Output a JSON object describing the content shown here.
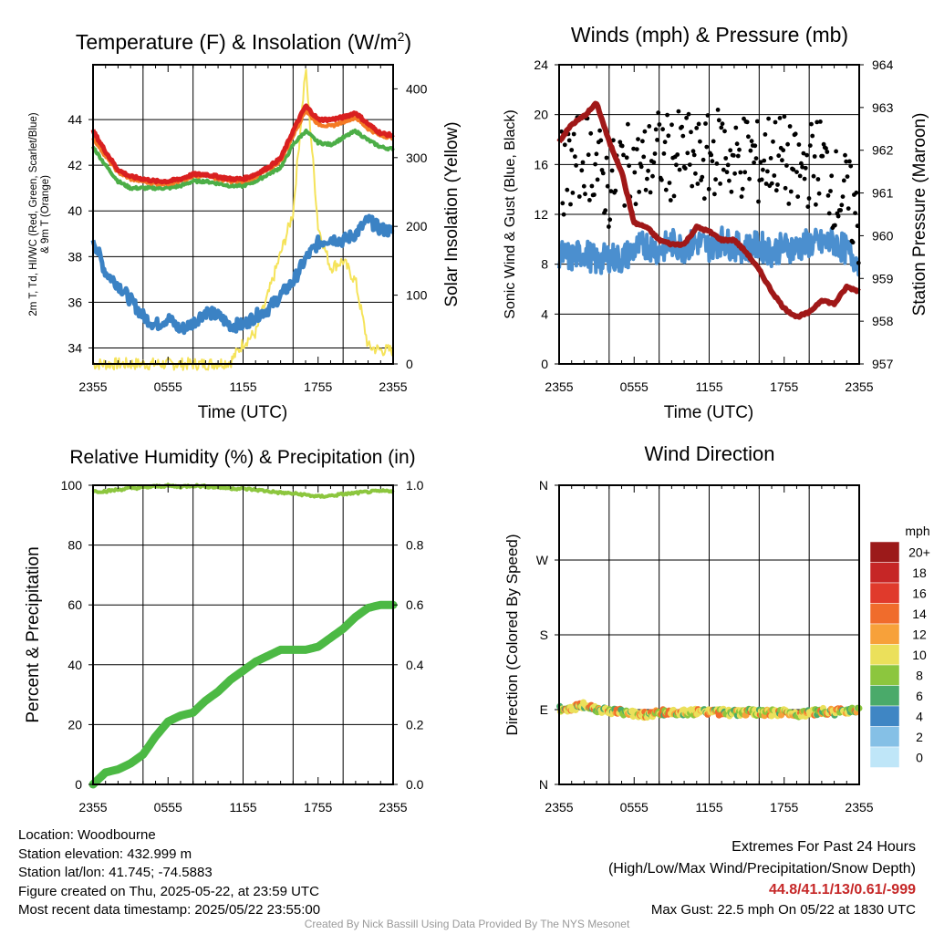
{
  "chart_data": [
    {
      "id": "temperature",
      "type": "line",
      "title": "Temperature (F) & Insolation (W/m²)",
      "title_main": "Temperature (F) & Insolation (W/m",
      "title_sup": "2",
      "title_end": ")",
      "xlabel": "Time (UTC)",
      "x_ticks": [
        "2355",
        "0555",
        "1155",
        "1755",
        "2355"
      ],
      "ylabel_lines": [
        "2m T, Td, HI/WC (Red, Green, Scarlet/Blue)",
        "& 9m T (Orange)"
      ],
      "ylim": [
        33.3,
        46.4
      ],
      "y_ticks": [
        34,
        36,
        38,
        40,
        42,
        44
      ],
      "ylabel_right": "Solar Insolation (Yellow)",
      "ylim_right": [
        0,
        435
      ],
      "y_ticks_right": [
        0,
        100,
        200,
        300,
        400
      ],
      "x_hours": [
        0,
        1,
        2,
        3,
        4,
        5,
        6,
        7,
        8,
        9,
        10,
        11,
        12,
        13,
        14,
        15,
        16,
        17,
        18,
        19,
        20,
        21,
        22,
        23,
        24
      ],
      "series": [
        {
          "name": "2m T",
          "color": "#d92020",
          "axis": "left",
          "width": 5,
          "values": [
            43.5,
            42.6,
            41.8,
            41.5,
            41.4,
            41.3,
            41.3,
            41.4,
            41.6,
            41.6,
            41.5,
            41.4,
            41.4,
            41.6,
            41.9,
            42.3,
            43.5,
            44.6,
            44.0,
            44.0,
            44.1,
            44.3,
            43.8,
            43.4,
            43.3
          ]
        },
        {
          "name": "9m T",
          "color": "#f47a25",
          "axis": "left",
          "width": 4,
          "values": [
            43.2,
            42.4,
            41.7,
            41.4,
            41.3,
            41.2,
            41.2,
            41.3,
            41.5,
            41.6,
            41.4,
            41.3,
            41.3,
            41.5,
            41.8,
            42.2,
            43.3,
            44.4,
            43.8,
            43.7,
            43.9,
            44.1,
            43.6,
            43.3,
            43.2
          ]
        },
        {
          "name": "Td",
          "color": "#4cae47",
          "axis": "left",
          "width": 4,
          "values": [
            42.8,
            42.0,
            41.3,
            41.0,
            41.0,
            41.0,
            41.0,
            41.1,
            41.3,
            41.3,
            41.2,
            41.1,
            41.1,
            41.3,
            41.6,
            41.9,
            42.9,
            43.5,
            43.0,
            42.9,
            43.2,
            43.5,
            43.1,
            42.8,
            42.7
          ]
        },
        {
          "name": "HI/WC",
          "color": "#3b82c4",
          "axis": "left",
          "width": 5,
          "values": [
            38.8,
            37.3,
            36.8,
            36.1,
            35.4,
            35.0,
            35.3,
            34.8,
            35.1,
            35.6,
            35.4,
            35.0,
            35.0,
            35.4,
            35.7,
            36.3,
            36.9,
            37.9,
            38.6,
            38.8,
            38.7,
            39.0,
            39.6,
            39.2,
            39.1
          ]
        },
        {
          "name": "Solar Insolation",
          "color": "#f5e35a",
          "axis": "right",
          "width": 2,
          "values": [
            0,
            0,
            0,
            0,
            0,
            0,
            0,
            0,
            0,
            0,
            1,
            3,
            30,
            45,
            100,
            160,
            220,
            430,
            200,
            140,
            150,
            120,
            25,
            20,
            20
          ]
        }
      ]
    },
    {
      "id": "winds",
      "type": "line",
      "title": "Winds (mph) & Pressure (mb)",
      "xlabel": "Time (UTC)",
      "x_ticks": [
        "2355",
        "0555",
        "1155",
        "1755",
        "2355"
      ],
      "ylabel": "Sonic Wind & Gust (Blue, Black)",
      "ylim": [
        0,
        24
      ],
      "y_ticks": [
        0,
        4,
        8,
        12,
        16,
        20,
        24
      ],
      "ylabel_right": "Station Pressure (Maroon)",
      "ylim_right": [
        957,
        964
      ],
      "y_ticks_right": [
        957,
        958,
        959,
        960,
        961,
        962,
        963,
        964
      ],
      "x_hours": [
        0,
        1,
        2,
        3,
        4,
        5,
        6,
        7,
        8,
        9,
        10,
        11,
        12,
        13,
        14,
        15,
        16,
        17,
        18,
        19,
        20,
        21,
        22,
        23,
        24
      ],
      "series": [
        {
          "name": "Sonic Wind",
          "color": "#4b8fcf",
          "axis": "left",
          "width": 4,
          "values": [
            8.8,
            8.5,
            9.0,
            8.2,
            8.6,
            8.4,
            9.2,
            9.6,
            9.1,
            9.7,
            9.3,
            9.8,
            9.4,
            9.9,
            9.4,
            9.3,
            9.5,
            9.0,
            9.4,
            9.3,
            9.7,
            9.6,
            9.8,
            9.1,
            8.2
          ]
        },
        {
          "name": "Gust",
          "color": "#000000",
          "axis": "left",
          "marker": "dot",
          "values": [
            15,
            16,
            17,
            16,
            14,
            16,
            15.5,
            16,
            17,
            16.5,
            17,
            16,
            16.5,
            17.5,
            16,
            17,
            16,
            17,
            16.5,
            15,
            16,
            16.5,
            14,
            13.5,
            11
          ]
        },
        {
          "name": "Station Pressure",
          "color": "#a01818",
          "axis": "right",
          "width": 6,
          "values": [
            962.2,
            962.6,
            962.8,
            963.1,
            962.2,
            961.5,
            960.3,
            960.2,
            959.9,
            959.8,
            959.8,
            960.2,
            960.1,
            959.9,
            959.9,
            959.6,
            959.2,
            958.7,
            958.3,
            958.1,
            958.2,
            958.5,
            958.4,
            958.8,
            958.7
          ]
        }
      ]
    },
    {
      "id": "humidity",
      "type": "line",
      "title": "Relative Humidity (%) & Precipitation (in)",
      "xlabel": "",
      "x_ticks": [
        "2355",
        "0555",
        "1155",
        "1755",
        "2355"
      ],
      "ylabel": "Percent & Precipitation",
      "ylim": [
        0,
        100
      ],
      "y_ticks": [
        0,
        20,
        40,
        60,
        80,
        100
      ],
      "ylim_right": [
        0,
        1
      ],
      "y_ticks_right": [
        "0.0",
        "0.2",
        "0.4",
        "0.6",
        "0.8",
        "1.0"
      ],
      "x_hours": [
        0,
        1,
        2,
        3,
        4,
        5,
        6,
        7,
        8,
        9,
        10,
        11,
        12,
        13,
        14,
        15,
        16,
        17,
        18,
        19,
        20,
        21,
        22,
        23,
        24
      ],
      "series": [
        {
          "name": "Relative Humidity",
          "color": "#8cc63e",
          "axis": "left",
          "width": 4,
          "values": [
            98,
            98,
            98.5,
            99,
            99.2,
            99.6,
            99.8,
            99.5,
            99.9,
            99.6,
            99.3,
            99.0,
            98.8,
            98.5,
            98.0,
            97.5,
            97.2,
            96.8,
            96.2,
            96.5,
            97.0,
            97.4,
            97.8,
            98.0,
            98.2
          ]
        },
        {
          "name": "Precipitation",
          "color": "#4cb944",
          "axis": "right",
          "width": 9,
          "values": [
            0.0,
            0.04,
            0.05,
            0.07,
            0.1,
            0.16,
            0.21,
            0.23,
            0.24,
            0.28,
            0.31,
            0.35,
            0.38,
            0.41,
            0.43,
            0.45,
            0.45,
            0.45,
            0.46,
            0.49,
            0.52,
            0.56,
            0.59,
            0.6,
            0.6
          ]
        }
      ]
    },
    {
      "id": "wind-direction",
      "type": "scatter",
      "title": "Wind Direction",
      "xlabel": "",
      "x_ticks": [
        "2355",
        "0555",
        "1155",
        "1755",
        "2355"
      ],
      "ylabel": "Direction (Colored By Speed)",
      "ylim": [
        0,
        360
      ],
      "y_ticks": [
        "N",
        "E",
        "S",
        "W",
        "N"
      ],
      "y_tick_values": [
        0,
        90,
        180,
        270,
        360
      ],
      "x_hours": [
        0,
        1,
        2,
        3,
        4,
        5,
        6,
        7,
        8,
        9,
        10,
        11,
        12,
        13,
        14,
        15,
        16,
        17,
        18,
        19,
        20,
        21,
        22,
        23,
        24
      ],
      "series": [
        {
          "name": "Direction",
          "values": [
            90,
            92,
            95,
            91,
            89,
            87,
            85,
            84,
            86,
            87,
            86,
            87,
            88,
            87,
            86,
            87,
            86,
            86,
            87,
            85,
            86,
            88,
            87,
            89,
            91
          ]
        }
      ],
      "speed_legend": {
        "unit": "mph",
        "labels": [
          "20+",
          "18",
          "16",
          "14",
          "12",
          "10",
          "8",
          "6",
          "4",
          "2",
          "0"
        ],
        "colors": [
          "#9c1a1a",
          "#c62626",
          "#e03a2c",
          "#f06c2c",
          "#f7a13a",
          "#ebe05b",
          "#8cc63e",
          "#4aaa6a",
          "#3f86c4",
          "#85c0e6",
          "#bfe6f8"
        ]
      }
    }
  ],
  "footer": {
    "location": "Location: Woodbourne",
    "elevation": "Station elevation: 432.999 m",
    "latlon": "Station lat/lon: 41.745; -74.5883",
    "created": "Figure created on Thu, 2025-05-22, at 23:59 UTC",
    "recent": "Most recent data timestamp: 2025/05/22 23:55:00",
    "extremes_title": "Extremes For Past 24 Hours",
    "extremes_desc": "(High/Low/Max Wind/Precipitation/Snow Depth)",
    "extremes_values": "44.8/41.1/13/0.61/-999",
    "max_gust": "Max Gust: 22.5 mph On 05/22 at 1830 UTC",
    "credit": "Created By Nick Bassill Using Data Provided By The NYS Mesonet"
  }
}
